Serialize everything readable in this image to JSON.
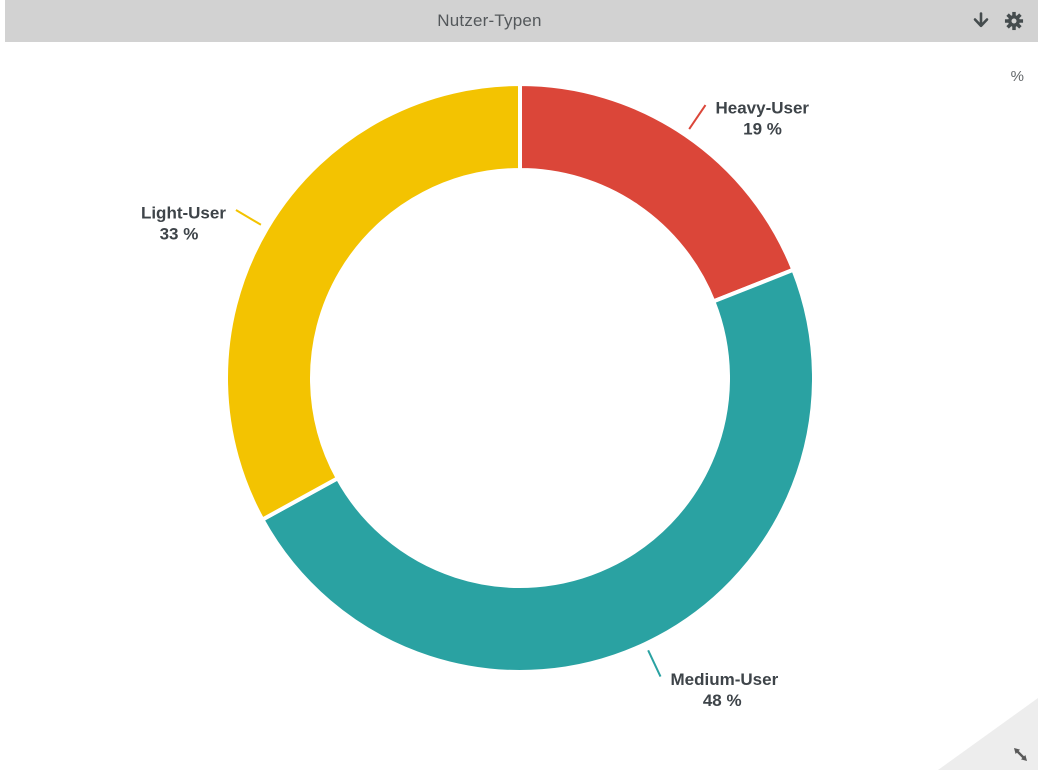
{
  "header": {
    "title": "Nutzer-Typen",
    "download_icon": "download-arrow",
    "settings_icon": "gear"
  },
  "chart_area": {
    "unit_label": "%"
  },
  "chart_data": {
    "type": "pie",
    "subtype": "donut",
    "title": "Nutzer-Typen",
    "categories": [
      "Heavy-User",
      "Medium-User",
      "Light-User"
    ],
    "values": [
      19,
      48,
      33
    ],
    "unit": "%",
    "slice_labels": [
      {
        "name": "Heavy-User",
        "value_text": "19 %"
      },
      {
        "name": "Medium-User",
        "value_text": "48 %"
      },
      {
        "name": "Light-User",
        "value_text": "33 %"
      }
    ],
    "colors": [
      "#DB4639",
      "#2AA2A2",
      "#F3C301"
    ],
    "slice_label_color": "#3E4449",
    "start_angle_deg": 0,
    "direction": "clockwise",
    "inner_radius_ratio": 0.707,
    "gap_color": "#FFFFFF",
    "legend": "none"
  },
  "resize_handle": {
    "icon": "diagonal-resize-arrow"
  }
}
